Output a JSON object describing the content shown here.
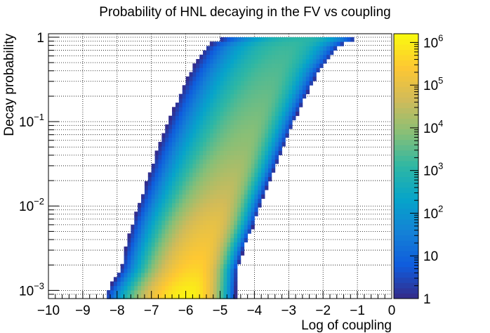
{
  "chart_data": {
    "type": "heatmap",
    "title": "Probability of HNL decaying in the FV vs coupling",
    "xlabel": "Log of coupling",
    "ylabel": "Decay probability",
    "xlim": [
      -10,
      0
    ],
    "ylim": [
      0.0008,
      1.1
    ],
    "y_scale": "log",
    "z_scale": "log",
    "zlim": [
      1,
      1600000
    ],
    "grid": true,
    "x_ticks": [
      "−10",
      "−9",
      "−8",
      "−7",
      "−6",
      "−5",
      "−4",
      "−3",
      "−2",
      "−1",
      "0"
    ],
    "y_ticks": [
      {
        "base": "10",
        "exp": "−3"
      },
      {
        "base": "10",
        "exp": "−2"
      },
      {
        "base": "10",
        "exp": "−1"
      },
      {
        "base": "1",
        "exp": ""
      }
    ],
    "colorbar_ticks": [
      {
        "base": "1",
        "exp": ""
      },
      {
        "base": "10",
        "exp": ""
      },
      {
        "base": "10",
        "exp": "2"
      },
      {
        "base": "10",
        "exp": "3"
      },
      {
        "base": "10",
        "exp": "4"
      },
      {
        "base": "10",
        "exp": "5"
      },
      {
        "base": "10",
        "exp": "6"
      }
    ],
    "colormap": [
      "#352a87",
      "#0f5cdd",
      "#1481d6",
      "#06a4ca",
      "#2eb7a4",
      "#87bf77",
      "#d1bb59",
      "#fec832",
      "#f9fb0e"
    ],
    "distribution": {
      "description_free": true,
      "band_rows_logp": [
        {
          "logp": -3.05,
          "x_lo": -8.35,
          "x_hi": -4.55,
          "peak_x": -5.9,
          "peak_log10_count": 6.1
        },
        {
          "logp": -2.75,
          "x_lo": -7.9,
          "x_hi": -4.5,
          "peak_x": -5.7,
          "peak_log10_count": 5.6
        },
        {
          "logp": -2.5,
          "x_lo": -7.75,
          "x_hi": -4.3,
          "peak_x": -5.5,
          "peak_log10_count": 5.3
        },
        {
          "logp": -2.2,
          "x_lo": -7.55,
          "x_hi": -4.0,
          "peak_x": -5.2,
          "peak_log10_count": 5.0
        },
        {
          "logp": -1.9,
          "x_lo": -7.3,
          "x_hi": -3.75,
          "peak_x": -4.9,
          "peak_log10_count": 4.6
        },
        {
          "logp": -1.6,
          "x_lo": -7.05,
          "x_hi": -3.45,
          "peak_x": -4.6,
          "peak_log10_count": 4.3
        },
        {
          "logp": -1.3,
          "x_lo": -6.8,
          "x_hi": -3.15,
          "peak_x": -4.3,
          "peak_log10_count": 4.0
        },
        {
          "logp": -1.0,
          "x_lo": -6.5,
          "x_hi": -2.85,
          "peak_x": -4.0,
          "peak_log10_count": 3.8
        },
        {
          "logp": -0.7,
          "x_lo": -6.2,
          "x_hi": -2.5,
          "peak_x": -3.7,
          "peak_log10_count": 3.6
        },
        {
          "logp": -0.4,
          "x_lo": -5.85,
          "x_hi": -2.1,
          "peak_x": -3.4,
          "peak_log10_count": 3.4
        },
        {
          "logp": -0.1,
          "x_lo": -5.4,
          "x_hi": -1.5,
          "peak_x": -3.0,
          "peak_log10_count": 3.2
        },
        {
          "logp": 0.0,
          "x_lo": -4.9,
          "x_hi": -0.9,
          "peak_x": -2.6,
          "peak_log10_count": 3.0
        }
      ]
    }
  }
}
